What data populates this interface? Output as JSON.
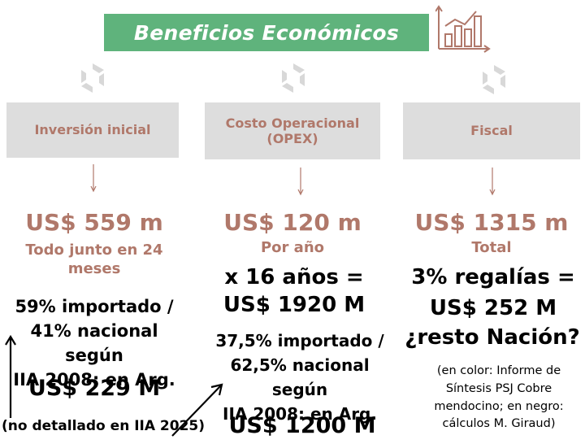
{
  "title": "Beneficios Económicos",
  "icons": {
    "header": "bar-chart-growth-icon",
    "section": "geometric-logo-icon"
  },
  "colors": {
    "banner": "#5fb37c",
    "accent": "#b0786a",
    "box": "#dddddd"
  },
  "columns": [
    {
      "label": "Inversión inicial",
      "value": "US$ 559 m",
      "subtitle": "Todo junto en 24 meses",
      "lines": [
        "59% importado /",
        "41% nacional según",
        "IIA 2008: en Arg."
      ],
      "total": "US$ 229 M",
      "footnote": "(no detallado en IIA 2025)"
    },
    {
      "label_line1": "Costo Operacional",
      "label_line2": "(OPEX)",
      "value": "US$ 120 m",
      "subtitle": "Por año",
      "calc_line1": "x 16 años =",
      "calc_line2": "US$ 1920 M",
      "lines": [
        "37,5% importado /",
        "62,5% nacional según",
        "IIA 2008: en Arg."
      ],
      "total": "US$ 1200 M"
    },
    {
      "label": "Fiscal",
      "value": "US$ 1315 m",
      "subtitle": "Total",
      "calc_line1": "3% regalías =",
      "calc_line2": "US$ 252 M",
      "question": "¿resto Nación?",
      "note_lines": [
        "(en color: Informe de",
        "Síntesis PSJ Cobre",
        "mendocino; en negro:",
        "cálculos M. Giraud)"
      ]
    }
  ]
}
